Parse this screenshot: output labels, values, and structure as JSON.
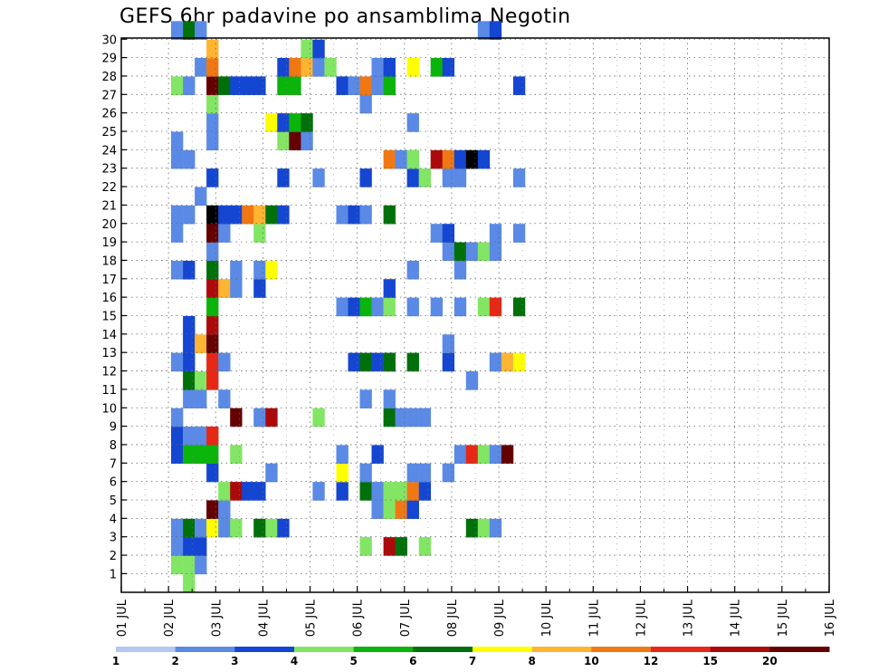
{
  "chart_data": {
    "type": "heatmap",
    "title": "GEFS 6hr padavine po ansamblima Negotin",
    "xlabel": "",
    "ylabel": "",
    "x_ticks": [
      "01 JUL",
      "02 JUL",
      "03 JUL",
      "04 JUL",
      "05 JUL",
      "06 JUL",
      "07 JUL",
      "08 JUL",
      "09 JUL",
      "10 JUL",
      "11 JUL",
      "12 JUL",
      "13 JUL",
      "14 JUL",
      "15 JUL",
      "16 JUL"
    ],
    "y_ticks": [
      "1",
      "2",
      "3",
      "4",
      "5",
      "6",
      "7",
      "8",
      "9",
      "10",
      "11",
      "12",
      "13",
      "14",
      "15",
      "16",
      "17",
      "18",
      "19",
      "20",
      "21",
      "22",
      "23",
      "24",
      "25",
      "26",
      "27",
      "28",
      "29",
      "30"
    ],
    "x_range_steps": [
      0,
      60
    ],
    "y_range_members": [
      0,
      30
    ],
    "grid": true,
    "legend": {
      "position": "bottom",
      "labels": [
        "1",
        "2",
        "3",
        "4",
        "5",
        "6",
        "7",
        "8",
        "10",
        "12",
        "15",
        "20"
      ],
      "colors": [
        "#b4c8f0",
        "#5a8ae6",
        "#1446d2",
        "#82e664",
        "#0ab40a",
        "#00700a",
        "#ffff00",
        "#ffb432",
        "#f07814",
        "#e62814",
        "#aa0a0a",
        "#640000"
      ]
    },
    "cells": [
      [
        2,
        1,
        3
      ],
      [
        3,
        1,
        3
      ],
      [
        3,
        0,
        3
      ],
      [
        4,
        1,
        1
      ],
      [
        2,
        2,
        1
      ],
      [
        3,
        2,
        2
      ],
      [
        4,
        2,
        2
      ],
      [
        18,
        2,
        3
      ],
      [
        20,
        2,
        10
      ],
      [
        21,
        2,
        5
      ],
      [
        23,
        2,
        3
      ],
      [
        2,
        3,
        1
      ],
      [
        3,
        3,
        5
      ],
      [
        4,
        3,
        1
      ],
      [
        5,
        3,
        6
      ],
      [
        6,
        3,
        1
      ],
      [
        7,
        3,
        3
      ],
      [
        9,
        3,
        5
      ],
      [
        10,
        3,
        3
      ],
      [
        11,
        3,
        2
      ],
      [
        27,
        3,
        5
      ],
      [
        28,
        3,
        3
      ],
      [
        29,
        3,
        1
      ],
      [
        5,
        4,
        11
      ],
      [
        6,
        4,
        1
      ],
      [
        19,
        4,
        1
      ],
      [
        20,
        4,
        3
      ],
      [
        21,
        4,
        3
      ],
      [
        22,
        4,
        3
      ],
      [
        21,
        4,
        8
      ],
      [
        22,
        4,
        2
      ],
      [
        6,
        5,
        3
      ],
      [
        7,
        5,
        10
      ],
      [
        8,
        5,
        2
      ],
      [
        9,
        5,
        2
      ],
      [
        14,
        5,
        1
      ],
      [
        16,
        5,
        2
      ],
      [
        18,
        5,
        5
      ],
      [
        19,
        5,
        1
      ],
      [
        20,
        5,
        3
      ],
      [
        21,
        5,
        3
      ],
      [
        22,
        5,
        8
      ],
      [
        23,
        5,
        2
      ],
      [
        5,
        6,
        2
      ],
      [
        10,
        6,
        1
      ],
      [
        16,
        6,
        6
      ],
      [
        18,
        6,
        1
      ],
      [
        22,
        6,
        1
      ],
      [
        23,
        6,
        1
      ],
      [
        25,
        6,
        1
      ],
      [
        2,
        7,
        2
      ],
      [
        3,
        7,
        4
      ],
      [
        4,
        7,
        4
      ],
      [
        5,
        7,
        4
      ],
      [
        7,
        7,
        3
      ],
      [
        16,
        7,
        1
      ],
      [
        19,
        7,
        2
      ],
      [
        26,
        7,
        1
      ],
      [
        27,
        7,
        9
      ],
      [
        28,
        7,
        3
      ],
      [
        29,
        7,
        1
      ],
      [
        30,
        7,
        11
      ],
      [
        2,
        8,
        2
      ],
      [
        3,
        8,
        1
      ],
      [
        4,
        8,
        1
      ],
      [
        5,
        8,
        9
      ],
      [
        2,
        9,
        1
      ],
      [
        7,
        9,
        11
      ],
      [
        9,
        9,
        1
      ],
      [
        10,
        9,
        10
      ],
      [
        14,
        9,
        3
      ],
      [
        20,
        9,
        5
      ],
      [
        21,
        9,
        1
      ],
      [
        22,
        9,
        1
      ],
      [
        23,
        9,
        1
      ],
      [
        3,
        10,
        1
      ],
      [
        4,
        10,
        1
      ],
      [
        6,
        10,
        1
      ],
      [
        18,
        10,
        1
      ],
      [
        20,
        10,
        1
      ],
      [
        3,
        11,
        5
      ],
      [
        4,
        11,
        3
      ],
      [
        5,
        11,
        9
      ],
      [
        27,
        11,
        1
      ],
      [
        2,
        12,
        1
      ],
      [
        3,
        12,
        2
      ],
      [
        5,
        12,
        9
      ],
      [
        6,
        12,
        1
      ],
      [
        17,
        12,
        2
      ],
      [
        18,
        12,
        5
      ],
      [
        19,
        12,
        2
      ],
      [
        20,
        12,
        1
      ],
      [
        20,
        12,
        5
      ],
      [
        22,
        12,
        5
      ],
      [
        25,
        12,
        2
      ],
      [
        29,
        12,
        1
      ],
      [
        30,
        12,
        7
      ],
      [
        31,
        12,
        6
      ],
      [
        3,
        13,
        2
      ],
      [
        4,
        13,
        7
      ],
      [
        5,
        13,
        11
      ],
      [
        25,
        13,
        1
      ],
      [
        3,
        14,
        2
      ],
      [
        5,
        14,
        10
      ],
      [
        5,
        15,
        4
      ],
      [
        16,
        15,
        1
      ],
      [
        17,
        15,
        2
      ],
      [
        18,
        15,
        4
      ],
      [
        19,
        15,
        1
      ],
      [
        20,
        15,
        3
      ],
      [
        22,
        15,
        1
      ],
      [
        24,
        15,
        1
      ],
      [
        26,
        15,
        1
      ],
      [
        28,
        15,
        3
      ],
      [
        29,
        15,
        9
      ],
      [
        31,
        15,
        5
      ],
      [
        5,
        16,
        10
      ],
      [
        6,
        16,
        7
      ],
      [
        7,
        16,
        1
      ],
      [
        9,
        16,
        2
      ],
      [
        20,
        16,
        2
      ],
      [
        2,
        17,
        1
      ],
      [
        3,
        17,
        2
      ],
      [
        5,
        17,
        5
      ],
      [
        7,
        17,
        1
      ],
      [
        9,
        17,
        1
      ],
      [
        10,
        17,
        6
      ],
      [
        22,
        17,
        1
      ],
      [
        26,
        17,
        1
      ],
      [
        5,
        18,
        1
      ],
      [
        25,
        18,
        1
      ],
      [
        26,
        18,
        5
      ],
      [
        27,
        18,
        1
      ],
      [
        28,
        18,
        3
      ],
      [
        29,
        18,
        1
      ],
      [
        2,
        19,
        1
      ],
      [
        5,
        19,
        11
      ],
      [
        6,
        19,
        1
      ],
      [
        9,
        19,
        3
      ],
      [
        24,
        19,
        1
      ],
      [
        25,
        19,
        2
      ],
      [
        29,
        19,
        1
      ],
      [
        31,
        19,
        1
      ],
      [
        2,
        20,
        1
      ],
      [
        3,
        20,
        1
      ],
      [
        5,
        20,
        12
      ],
      [
        6,
        20,
        2
      ],
      [
        7,
        20,
        2
      ],
      [
        8,
        20,
        8
      ],
      [
        9,
        20,
        7
      ],
      [
        10,
        20,
        5
      ],
      [
        11,
        20,
        2
      ],
      [
        16,
        20,
        1
      ],
      [
        17,
        20,
        2
      ],
      [
        18,
        20,
        1
      ],
      [
        20,
        20,
        5
      ],
      [
        4,
        21,
        1
      ],
      [
        5,
        22,
        2
      ],
      [
        11,
        22,
        2
      ],
      [
        14,
        22,
        1
      ],
      [
        18,
        22,
        2
      ],
      [
        22,
        22,
        2
      ],
      [
        23,
        22,
        3
      ],
      [
        25,
        22,
        1
      ],
      [
        26,
        22,
        1
      ],
      [
        31,
        22,
        1
      ],
      [
        2,
        23,
        1
      ],
      [
        3,
        23,
        1
      ],
      [
        20,
        23,
        8
      ],
      [
        21,
        23,
        1
      ],
      [
        22,
        23,
        1
      ],
      [
        22,
        23,
        3
      ],
      [
        24,
        23,
        10
      ],
      [
        25,
        23,
        8
      ],
      [
        26,
        23,
        2
      ],
      [
        27,
        23,
        12
      ],
      [
        28,
        23,
        2
      ],
      [
        2,
        24,
        1
      ],
      [
        5,
        24,
        1
      ],
      [
        11,
        24,
        3
      ],
      [
        12,
        24,
        11
      ],
      [
        13,
        24,
        1
      ],
      [
        5,
        25,
        1
      ],
      [
        10,
        25,
        6
      ],
      [
        11,
        25,
        2
      ],
      [
        12,
        25,
        4
      ],
      [
        13,
        25,
        5
      ],
      [
        22,
        25,
        1
      ],
      [
        5,
        26,
        3
      ],
      [
        18,
        26,
        1
      ],
      [
        2,
        27,
        3
      ],
      [
        3,
        27,
        1
      ],
      [
        5,
        27,
        11
      ],
      [
        6,
        27,
        5
      ],
      [
        7,
        27,
        2
      ],
      [
        8,
        27,
        2
      ],
      [
        9,
        27,
        2
      ],
      [
        11,
        27,
        4
      ],
      [
        12,
        27,
        4
      ],
      [
        16,
        27,
        2
      ],
      [
        17,
        27,
        1
      ],
      [
        18,
        27,
        8
      ],
      [
        19,
        27,
        1
      ],
      [
        20,
        27,
        1
      ],
      [
        20,
        27,
        4
      ],
      [
        31,
        27,
        2
      ],
      [
        4,
        28,
        1
      ],
      [
        5,
        28,
        8
      ],
      [
        11,
        28,
        2
      ],
      [
        12,
        28,
        8
      ],
      [
        13,
        28,
        7
      ],
      [
        14,
        28,
        1
      ],
      [
        15,
        28,
        3
      ],
      [
        19,
        28,
        2
      ],
      [
        19,
        28,
        1
      ],
      [
        20,
        28,
        2
      ],
      [
        22,
        28,
        6
      ],
      [
        24,
        28,
        4
      ],
      [
        25,
        28,
        2
      ],
      [
        5,
        29,
        7
      ],
      [
        13,
        29,
        3
      ],
      [
        14,
        29,
        2
      ],
      [
        2,
        30,
        1
      ],
      [
        3,
        30,
        5
      ],
      [
        4,
        30,
        1
      ],
      [
        28,
        30,
        1
      ],
      [
        29,
        30,
        2
      ]
    ]
  }
}
